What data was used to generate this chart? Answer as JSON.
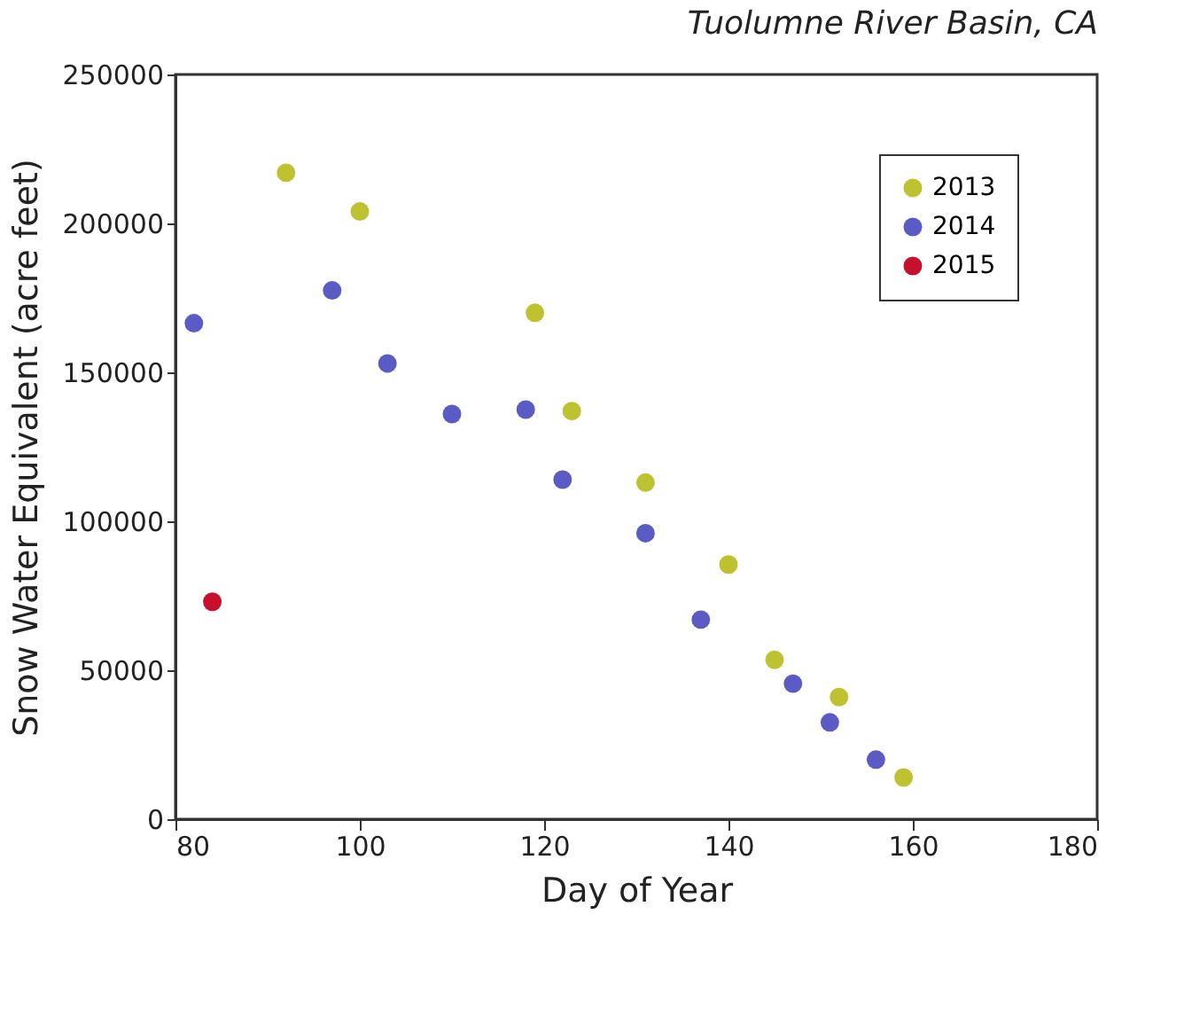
{
  "chart_data": {
    "type": "scatter",
    "title": "Tuolumne River Basin, CA",
    "xlabel": "Day of Year",
    "ylabel": "Snow Water Equivalent (acre feet)",
    "xlim": [
      80,
      180
    ],
    "xticks": [
      80,
      100,
      120,
      140,
      160,
      180
    ],
    "ylim": [
      0,
      250000
    ],
    "yticks": [
      0,
      50000,
      100000,
      150000,
      200000,
      250000
    ],
    "grid": false,
    "legend": "top right",
    "marker": "circle",
    "series": [
      {
        "name": "2013",
        "color": "#bfc230",
        "x": [
          92,
          100,
          119,
          123,
          131,
          140,
          145,
          152,
          159
        ],
        "values": [
          217000,
          204000,
          170000,
          137000,
          113000,
          85500,
          53500,
          41000,
          14000
        ]
      },
      {
        "name": "2014",
        "color": "#5a5bc4",
        "x": [
          82,
          97,
          103,
          110,
          118,
          122,
          131,
          137,
          147,
          151,
          156
        ],
        "values": [
          166500,
          177500,
          153000,
          136000,
          137500,
          114000,
          96000,
          67000,
          45500,
          32500,
          20000
        ]
      },
      {
        "name": "2015",
        "color": "#c8102e",
        "x": [
          84
        ],
        "values": [
          73000
        ]
      }
    ]
  }
}
